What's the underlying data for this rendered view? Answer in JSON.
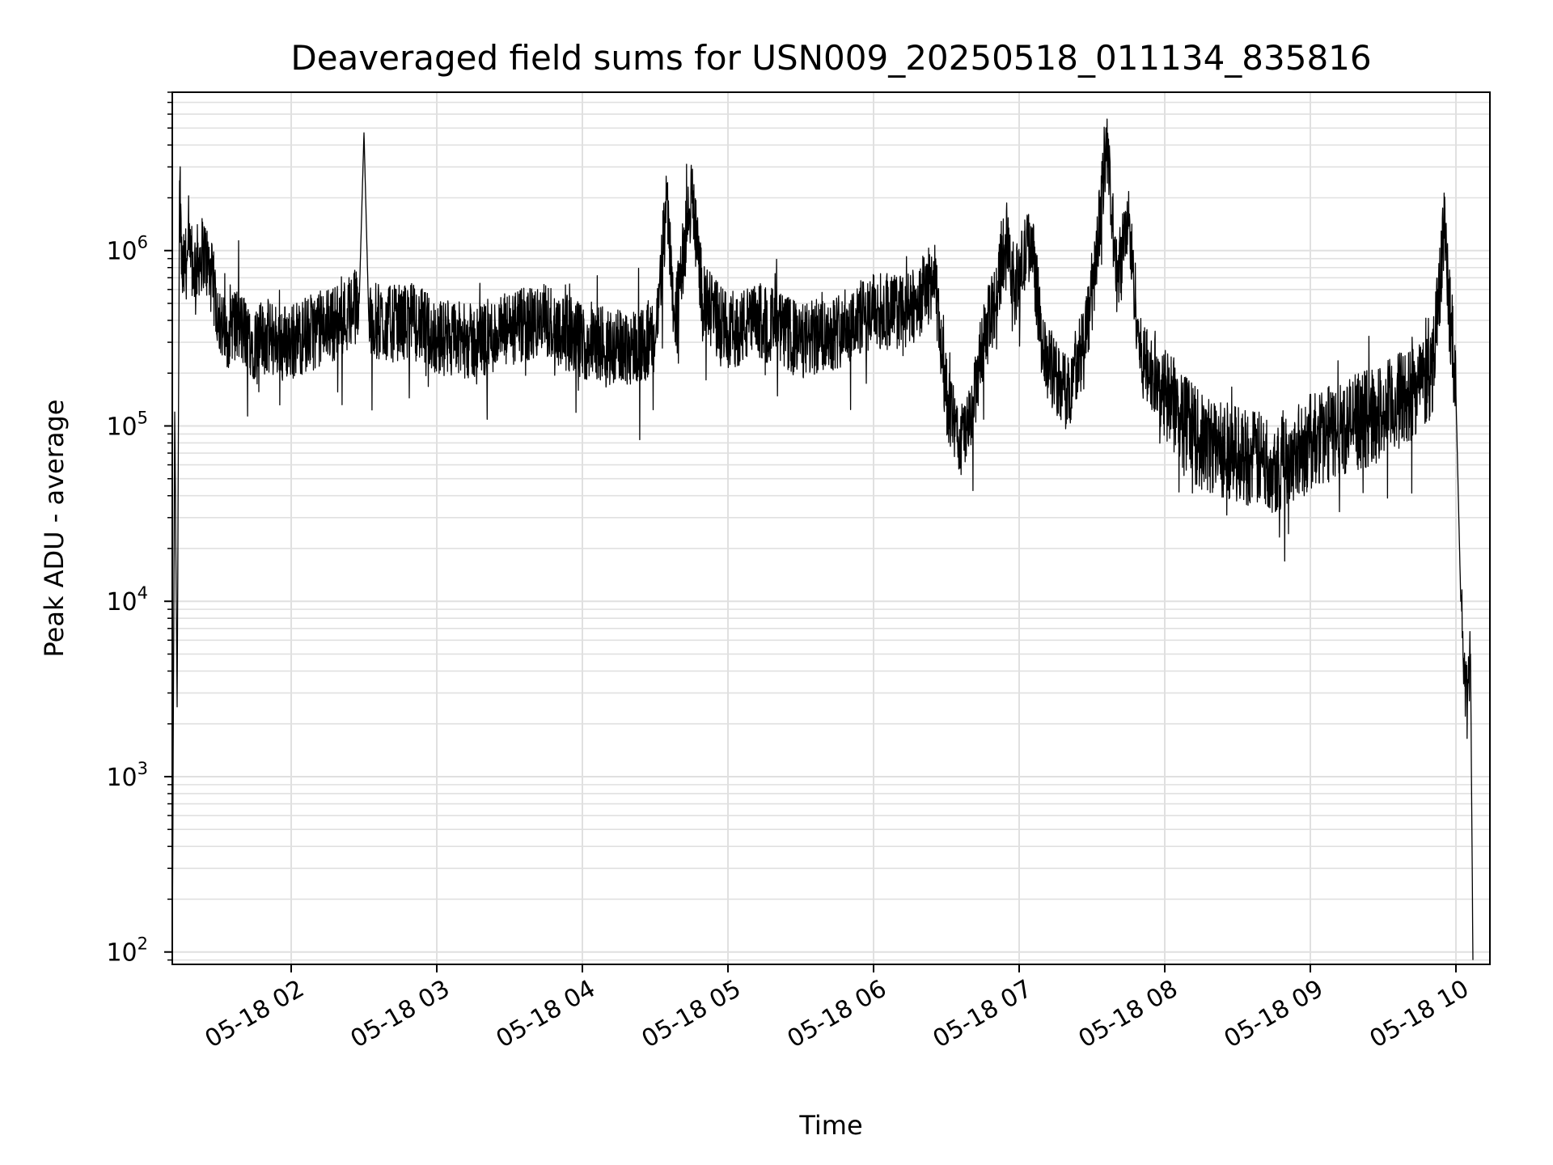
{
  "chart_data": {
    "type": "line",
    "title": "Deaveraged field sums for USN009_20250518_011134_835816",
    "xlabel": "Time",
    "ylabel": "Peak ADU - average",
    "yscale": "log",
    "ylim": [
      85,
      8000000
    ],
    "xlim": [
      "2025-05-18 01:11",
      "2025-05-18 10:14"
    ],
    "grid": true,
    "line_color": "#000000",
    "grid_color": "#e0e0e0",
    "x_ticks": [
      {
        "x": "2025-05-18 02:00",
        "label": "05-18 02"
      },
      {
        "x": "2025-05-18 03:00",
        "label": "05-18 03"
      },
      {
        "x": "2025-05-18 04:00",
        "label": "05-18 04"
      },
      {
        "x": "2025-05-18 05:00",
        "label": "05-18 05"
      },
      {
        "x": "2025-05-18 06:00",
        "label": "05-18 06"
      },
      {
        "x": "2025-05-18 07:00",
        "label": "05-18 07"
      },
      {
        "x": "2025-05-18 08:00",
        "label": "05-18 08"
      },
      {
        "x": "2025-05-18 09:00",
        "label": "05-18 09"
      },
      {
        "x": "2025-05-18 10:00",
        "label": "05-18 10"
      }
    ],
    "y_ticks": [
      {
        "value": 100,
        "base": "10",
        "exp": "2"
      },
      {
        "value": 1000,
        "base": "10",
        "exp": "3"
      },
      {
        "value": 10000,
        "base": "10",
        "exp": "4"
      },
      {
        "value": 100000,
        "base": "10",
        "exp": "5"
      },
      {
        "value": 1000000,
        "base": "10",
        "exp": "6"
      }
    ],
    "series": [
      {
        "x": [
          "2025-05-18 01:11",
          "2025-05-18 01:12",
          "2025-05-18 01:13",
          "2025-05-18 01:14",
          "2025-05-18 01:15",
          "2025-05-18 01:17",
          "2025-05-18 01:20",
          "2025-05-18 01:24",
          "2025-05-18 01:27",
          "2025-05-18 01:30",
          "2025-05-18 01:33",
          "2025-05-18 01:35",
          "2025-05-18 01:40",
          "2025-05-18 01:45",
          "2025-05-18 01:50",
          "2025-05-18 02:00",
          "2025-05-18 02:10",
          "2025-05-18 02:20",
          "2025-05-18 02:28",
          "2025-05-18 02:30",
          "2025-05-18 02:32",
          "2025-05-18 02:40",
          "2025-05-18 02:50",
          "2025-05-18 03:00",
          "2025-05-18 03:15",
          "2025-05-18 03:30",
          "2025-05-18 03:45",
          "2025-05-18 04:00",
          "2025-05-18 04:15",
          "2025-05-18 04:30",
          "2025-05-18 04:35",
          "2025-05-18 04:38",
          "2025-05-18 04:45",
          "2025-05-18 04:50",
          "2025-05-18 05:00",
          "2025-05-18 05:15",
          "2025-05-18 05:30",
          "2025-05-18 05:45",
          "2025-05-18 06:00",
          "2025-05-18 06:15",
          "2025-05-18 06:25",
          "2025-05-18 06:30",
          "2025-05-18 06:35",
          "2025-05-18 06:40",
          "2025-05-18 06:45",
          "2025-05-18 06:50",
          "2025-05-18 06:55",
          "2025-05-18 06:58",
          "2025-05-18 07:05",
          "2025-05-18 07:10",
          "2025-05-18 07:20",
          "2025-05-18 07:30",
          "2025-05-18 07:36",
          "2025-05-18 07:40",
          "2025-05-18 07:45",
          "2025-05-18 07:50",
          "2025-05-18 08:00",
          "2025-05-18 08:15",
          "2025-05-18 08:30",
          "2025-05-18 08:45",
          "2025-05-18 09:00",
          "2025-05-18 09:15",
          "2025-05-18 09:30",
          "2025-05-18 09:40",
          "2025-05-18 09:50",
          "2025-05-18 09:55",
          "2025-05-18 10:00",
          "2025-05-18 10:02",
          "2025-05-18 10:04",
          "2025-05-18 10:06",
          "2025-05-18 10:07"
        ],
        "y": [
          90,
          120000,
          2500,
          2500000,
          700000,
          900000,
          800000,
          1000000,
          700000,
          450000,
          300000,
          400000,
          350000,
          300000,
          320000,
          300000,
          350000,
          400000,
          500000,
          4700000,
          400000,
          380000,
          400000,
          320000,
          300000,
          350000,
          400000,
          300000,
          280000,
          300000,
          2000000,
          400000,
          2100000,
          500000,
          350000,
          400000,
          300000,
          350000,
          450000,
          450000,
          700000,
          150000,
          80000,
          100000,
          300000,
          500000,
          1300000,
          600000,
          1200000,
          250000,
          150000,
          500000,
          4200000,
          700000,
          1500000,
          250000,
          150000,
          80000,
          70000,
          60000,
          80000,
          100000,
          120000,
          150000,
          200000,
          1300000,
          150000,
          10000,
          3000,
          5000,
          90
        ]
      }
    ]
  }
}
